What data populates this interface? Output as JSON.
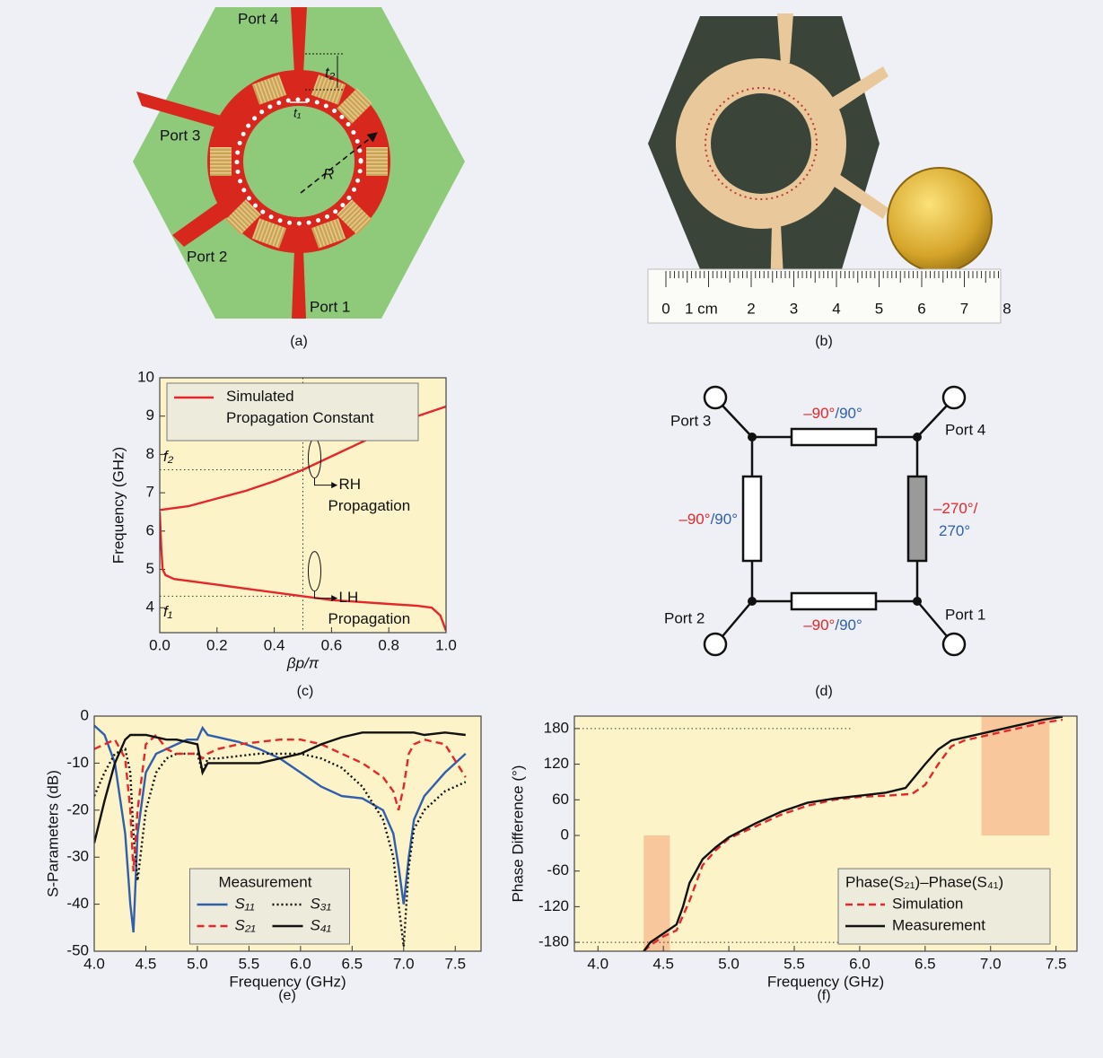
{
  "captions": {
    "a": "(a)",
    "b": "(b)",
    "c": "(c)",
    "d": "(d)",
    "e": "(e)",
    "f": "(f)"
  },
  "layout_a": {
    "ports": [
      "Port 1",
      "Port 2",
      "Port 3",
      "Port 4"
    ],
    "dims": {
      "t1": "t₁",
      "t2": "t₂",
      "R": "R"
    }
  },
  "photo_b": {
    "ruler": [
      "0",
      "1 cm",
      "2",
      "3",
      "4",
      "5",
      "6",
      "7",
      "8"
    ]
  },
  "circuit_d": {
    "ports": [
      "Port 1",
      "Port 2",
      "Port 3",
      "Port 4"
    ],
    "top": {
      "lag": "–90°",
      "lead": "/90°"
    },
    "bottom": {
      "lag": "–90°",
      "lead": "/90°"
    },
    "left": {
      "lag": "–90°",
      "lead": "/90°"
    },
    "right": {
      "lag": "–270°/",
      "lead": "270°"
    }
  },
  "chart_data": [
    {
      "type": "line",
      "y_label": "Frequency (GHz)",
      "x_label": "βp/π",
      "xlim": [
        0,
        1.0
      ],
      "ylim": [
        3.35,
        10
      ],
      "xticks": [
        {
          "value": 0,
          "label": "0.0"
        },
        0.2,
        0.4,
        0.6,
        0.8,
        {
          "value": 1,
          "label": "1.0"
        }
      ],
      "yticks": [
        4,
        5,
        6,
        7,
        8,
        9,
        10
      ],
      "plot_background": "#fcf4c8",
      "legend": "upper left",
      "series": [
        {
          "name": "Simulated Propagation Constant",
          "color": "#e5262a",
          "dash": "solid",
          "x": [
            0,
            0.05,
            0.1,
            0.2,
            0.3,
            0.4,
            0.5,
            0.6,
            0.7,
            0.8,
            0.9,
            1.0,
            null,
            0,
            0.005,
            0.01,
            0.02,
            0.05,
            0.1,
            0.2,
            0.3,
            0.4,
            0.5,
            0.6,
            0.7,
            0.8,
            0.9,
            0.95,
            0.98,
            1.0
          ],
          "values": [
            6.55,
            6.6,
            6.65,
            6.85,
            7.05,
            7.3,
            7.6,
            7.95,
            8.3,
            8.65,
            9.0,
            9.25,
            null,
            6.5,
            5.6,
            5.0,
            4.85,
            4.75,
            4.7,
            4.6,
            4.5,
            4.4,
            4.3,
            4.2,
            4.15,
            4.1,
            4.05,
            4.0,
            3.8,
            3.4
          ]
        }
      ],
      "ref_lines": [
        {
          "x": 0.5
        },
        {
          "y": 7.6,
          "label": "f₂"
        },
        {
          "y": 4.3,
          "label": "f₁"
        }
      ],
      "annotations": [
        {
          "lines": [
            "RH",
            "Propagation"
          ]
        },
        {
          "lines": [
            "LH",
            "Propagation"
          ]
        }
      ]
    },
    {
      "type": "line",
      "y_label": "S-Parameters (dB)",
      "x_label": "Frequency (GHz)",
      "xlim": [
        4.0,
        7.75
      ],
      "ylim": [
        -50,
        0
      ],
      "xticks": [
        {
          "value": 4,
          "label": "4.0"
        },
        4.5,
        {
          "value": 5,
          "label": "5.0"
        },
        5.5,
        {
          "value": 6,
          "label": "6.0"
        },
        6.5,
        {
          "value": 7,
          "label": "7.0"
        },
        7.5
      ],
      "yticks": [
        0,
        -10,
        -20,
        -30,
        -40,
        -50
      ],
      "plot_background": "#fcf4c8",
      "legend": "lower center",
      "legend_title": "Measurement",
      "legend_columns": 2,
      "x": [
        4.0,
        4.1,
        4.2,
        4.3,
        4.35,
        4.38,
        4.42,
        4.5,
        4.6,
        4.7,
        4.8,
        4.9,
        5.0,
        5.05,
        5.1,
        5.2,
        5.4,
        5.6,
        5.8,
        6.0,
        6.2,
        6.4,
        6.6,
        6.8,
        6.9,
        6.95,
        7.0,
        7.05,
        7.1,
        7.2,
        7.4,
        7.6
      ],
      "series": [
        {
          "name": "S₁₁",
          "color": "#2f5fae",
          "dash": "solid",
          "values": [
            -2,
            -4,
            -10,
            -25,
            -40,
            -46,
            -25,
            -12,
            -8,
            -7,
            -6,
            -5,
            -5,
            -2.5,
            -4,
            -4.5,
            -5.5,
            -7,
            -9,
            -12,
            -15,
            -17,
            -17.5,
            -20,
            -25,
            -32,
            -40,
            -30,
            -22,
            -17,
            -12,
            -8
          ]
        },
        {
          "name": "S₃₁",
          "color": "#111111",
          "dash": "dotted",
          "values": [
            -17,
            -12,
            -8,
            -7,
            -12,
            -25,
            -35,
            -20,
            -12,
            -9,
            -8,
            -8,
            -8,
            -12,
            -9,
            -9,
            -8.5,
            -8,
            -8,
            -8,
            -9,
            -11,
            -15,
            -22,
            -30,
            -40,
            -49,
            -32,
            -24,
            -20,
            -16,
            -14
          ]
        },
        {
          "name": "S₂₁",
          "color": "#e5262a",
          "dash": "dashed",
          "values": [
            -7,
            -6,
            -5,
            -9,
            -20,
            -33,
            -20,
            -6,
            -4,
            -7,
            -8,
            -8,
            -8,
            -9,
            -8,
            -7,
            -6,
            -5.5,
            -5,
            -5,
            -6,
            -8,
            -10,
            -13,
            -16,
            -20,
            -15,
            -8,
            -6,
            -5,
            -6,
            -13
          ]
        },
        {
          "name": "S₄₁",
          "color": "#111111",
          "dash": "solid",
          "values": [
            -27,
            -18,
            -10,
            -5,
            -4,
            -4,
            -4,
            -4,
            -4.5,
            -5,
            -5,
            -5.5,
            -6,
            -12,
            -10,
            -10,
            -10,
            -10,
            -9,
            -8,
            -6,
            -4.5,
            -3.5,
            -3.5,
            -3.5,
            -3.5,
            -3.5,
            -3.5,
            -3.5,
            -4,
            -3.5,
            -4
          ]
        }
      ]
    },
    {
      "type": "line",
      "y_label": "Phase Difference (°)",
      "x_label": "Frequency (GHz)",
      "xlim": [
        3.82,
        7.66
      ],
      "ylim": [
        -195,
        201
      ],
      "xticks": [
        {
          "value": 4,
          "label": "4.0"
        },
        4.5,
        {
          "value": 5,
          "label": "5.0"
        },
        5.5,
        {
          "value": 6,
          "label": "6.0"
        },
        6.5,
        {
          "value": 7,
          "label": "7.0"
        },
        7.5
      ],
      "yticks": [
        180,
        120,
        60,
        0,
        -60,
        -120,
        -180
      ],
      "plot_background": "#fcf4c8",
      "legend": "lower right",
      "legend_title": "Phase(S₂₁)–Phase(S₄₁)",
      "legend_columns": 1,
      "shaded_regions": [
        {
          "x": [
            4.35,
            4.55
          ],
          "y": [
            -195,
            0
          ],
          "color": "#f8c79b"
        },
        {
          "x": [
            6.93,
            7.45
          ],
          "y": [
            0,
            201
          ],
          "color": "#f8c79b"
        }
      ],
      "ref_lines": [
        {
          "y": 180
        },
        {
          "y": -180
        }
      ],
      "series": [
        {
          "name": "Simulation",
          "color": "#e5262a",
          "dash": "dashed",
          "x": [
            4.35,
            4.4,
            4.5,
            4.6,
            4.7,
            4.8,
            4.9,
            5.0,
            5.2,
            5.4,
            5.6,
            5.8,
            6.0,
            6.2,
            6.4,
            6.5,
            6.6,
            6.7,
            6.8,
            7.0,
            7.2,
            7.4,
            7.55
          ],
          "values": [
            -195,
            -185,
            -170,
            -160,
            -110,
            -50,
            -25,
            -5,
            15,
            35,
            50,
            60,
            65,
            67,
            70,
            85,
            120,
            150,
            160,
            170,
            180,
            190,
            195
          ]
        },
        {
          "name": "Measurement",
          "color": "#111111",
          "dash": "solid",
          "x": [
            4.35,
            4.4,
            4.5,
            4.6,
            4.65,
            4.7,
            4.8,
            4.9,
            5.0,
            5.2,
            5.4,
            5.6,
            5.8,
            6.0,
            6.2,
            6.35,
            6.5,
            6.6,
            6.7,
            6.8,
            7.0,
            7.2,
            7.4,
            7.55
          ],
          "values": [
            -195,
            -180,
            -165,
            -150,
            -120,
            -80,
            -40,
            -20,
            -3,
            20,
            40,
            55,
            62,
            67,
            72,
            80,
            120,
            145,
            160,
            165,
            175,
            185,
            195,
            200
          ]
        }
      ]
    }
  ]
}
